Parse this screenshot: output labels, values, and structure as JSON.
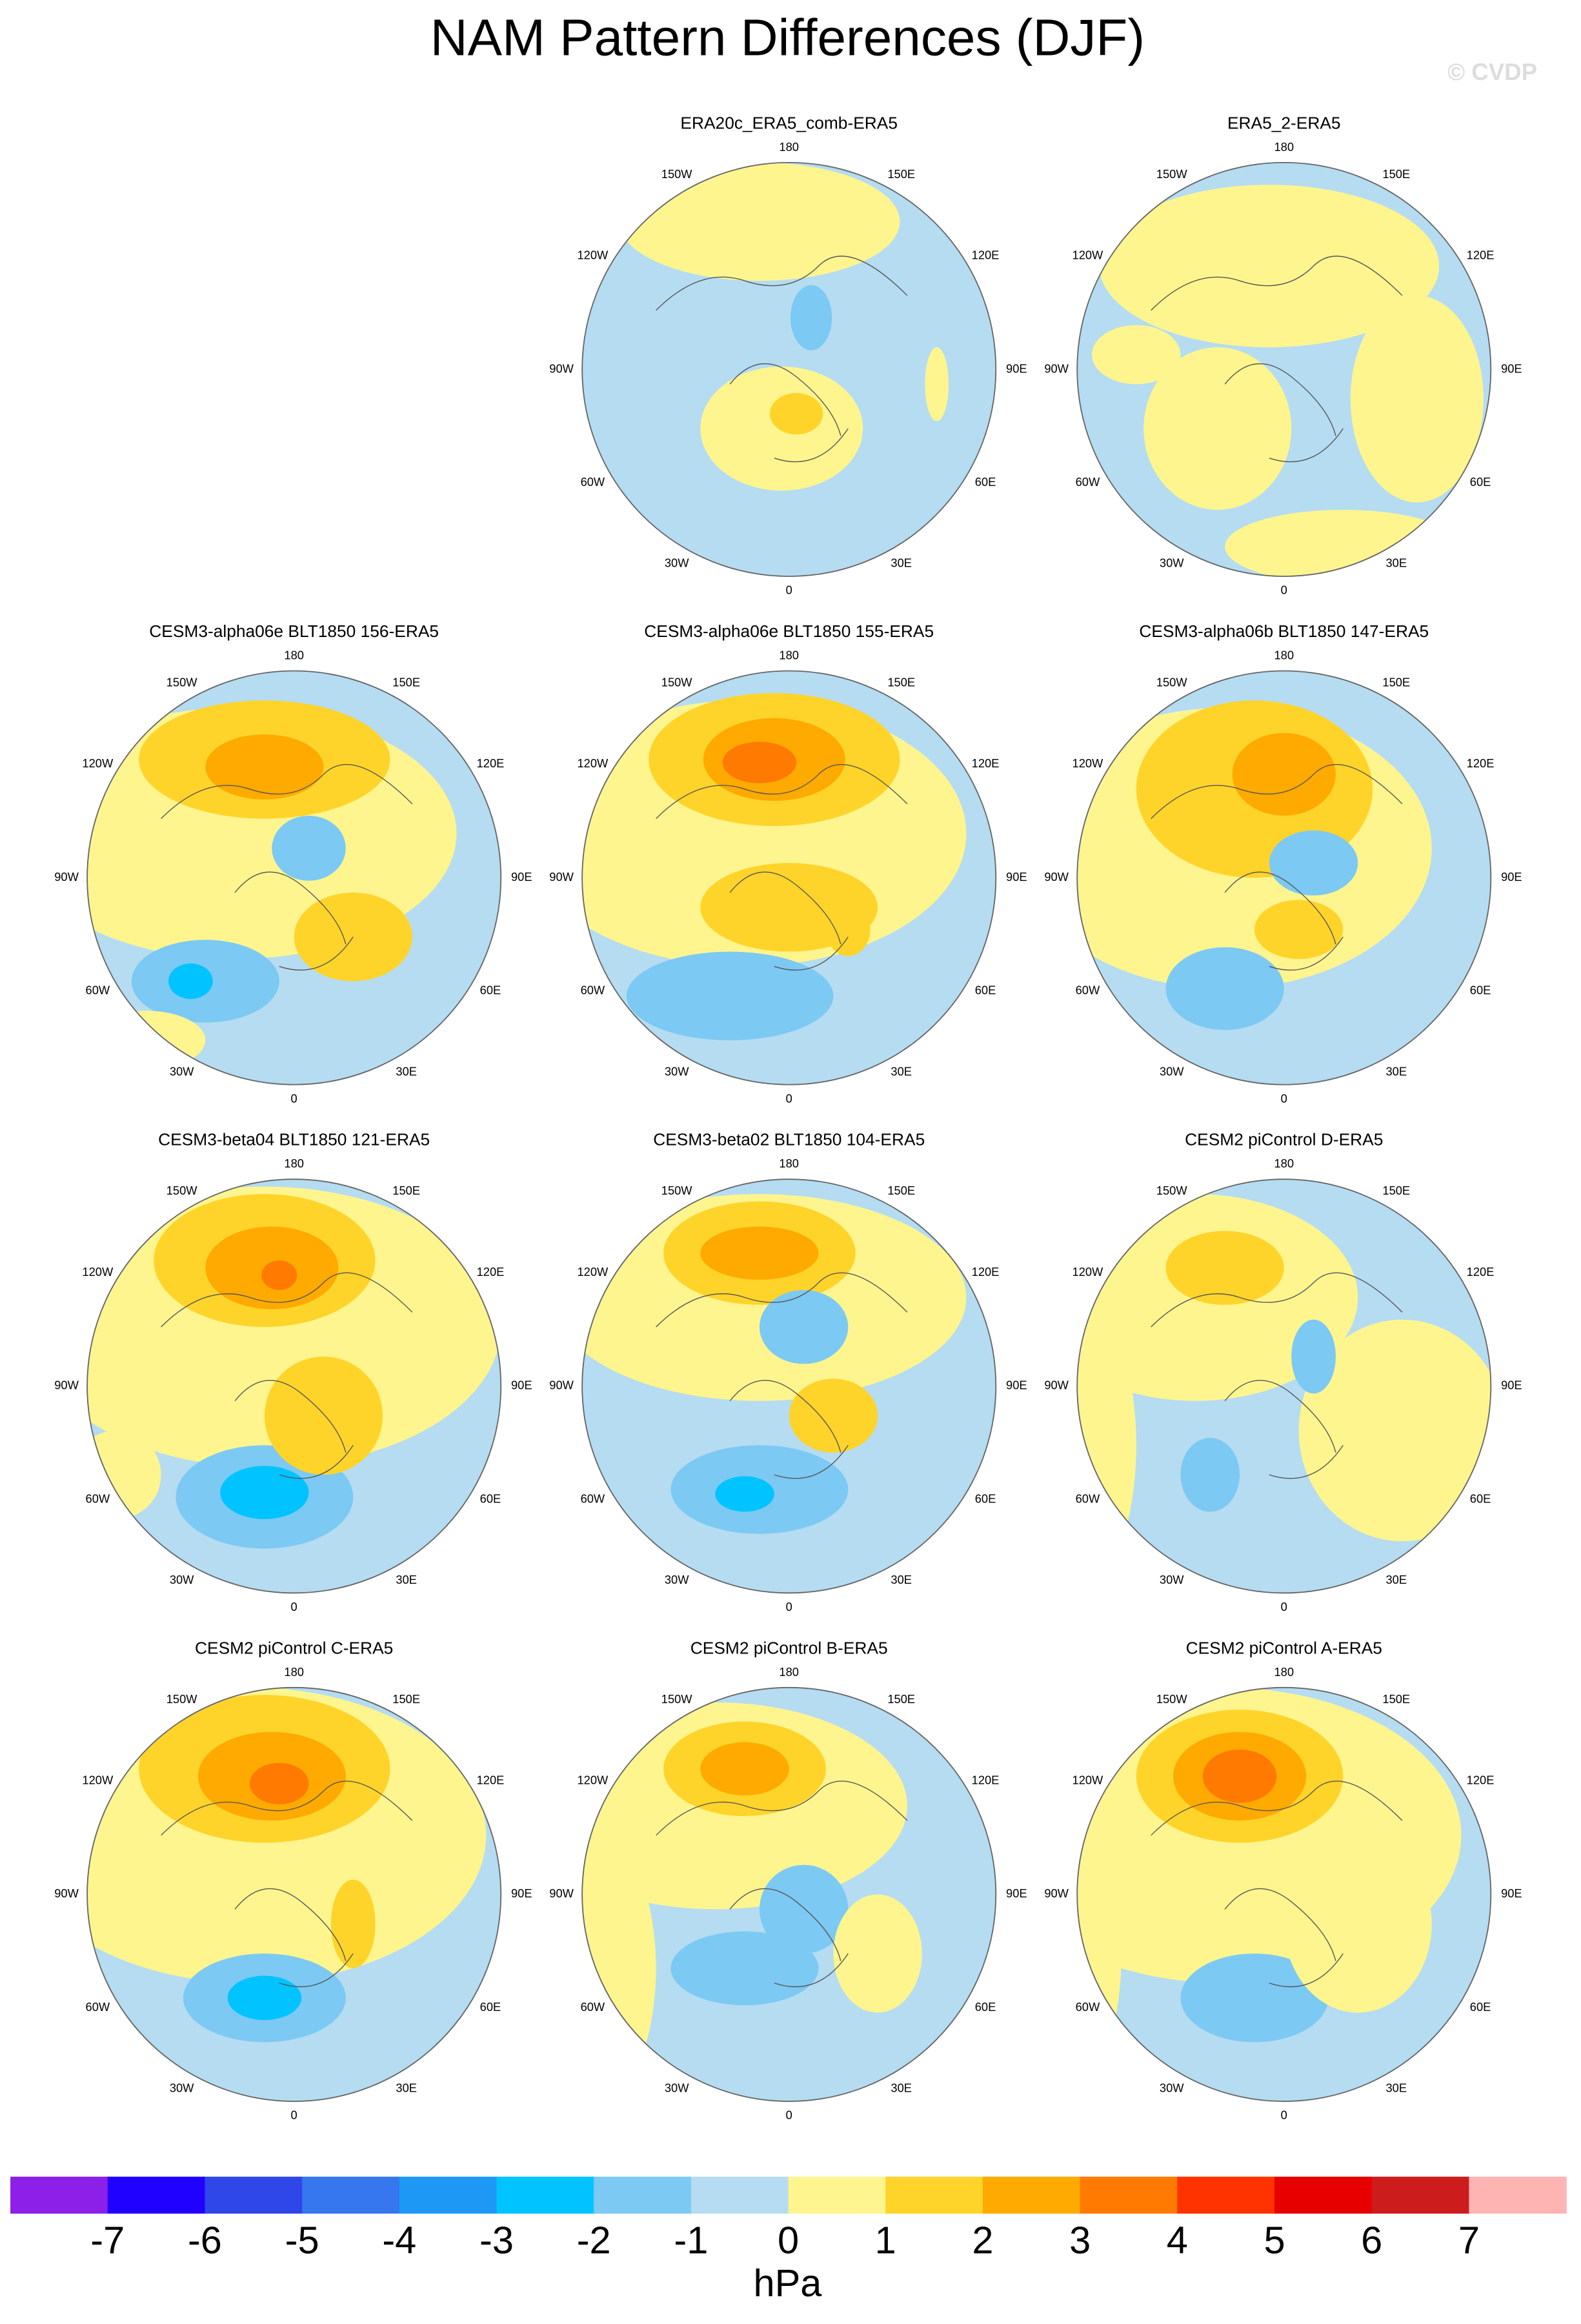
{
  "title": "NAM Pattern Differences (DJF)",
  "credit": "© CVDP",
  "panels": [
    {
      "title": "ERA20c_ERA5_comb-ERA5"
    },
    {
      "title": "ERA5_2-ERA5"
    },
    {
      "title": "CESM3-alpha06e BLT1850 156-ERA5"
    },
    {
      "title": "CESM3-alpha06e BLT1850 155-ERA5"
    },
    {
      "title": "CESM3-alpha06b BLT1850 147-ERA5"
    },
    {
      "title": "CESM3-beta04 BLT1850 121-ERA5"
    },
    {
      "title": "CESM3-beta02 BLT1850 104-ERA5"
    },
    {
      "title": "CESM2 piControl D-ERA5"
    },
    {
      "title": "CESM2 piControl C-ERA5"
    },
    {
      "title": "CESM2 piControl B-ERA5"
    },
    {
      "title": "CESM2 piControl A-ERA5"
    }
  ],
  "lon_labels": [
    "180",
    "150E",
    "120E",
    "90E",
    "60E",
    "30E",
    "0",
    "30W",
    "60W",
    "90W",
    "120W",
    "150W"
  ],
  "colorbar": {
    "levels": [
      -7,
      -6,
      -5,
      -4,
      -3,
      -2,
      -1,
      0,
      1,
      2,
      3,
      4,
      5,
      6,
      7
    ],
    "colors": [
      "#8c1fe8",
      "#2000ff",
      "#2f46e8",
      "#3676ee",
      "#1e98f5",
      "#00c3ff",
      "#7cc9f3",
      "#b5dcf1",
      "#fff58f",
      "#ffd42a",
      "#ffaa00",
      "#ff7a00",
      "#ff3300",
      "#e60000",
      "#cc1c1c",
      "#ffb4b4"
    ],
    "unit": "hPa"
  }
}
